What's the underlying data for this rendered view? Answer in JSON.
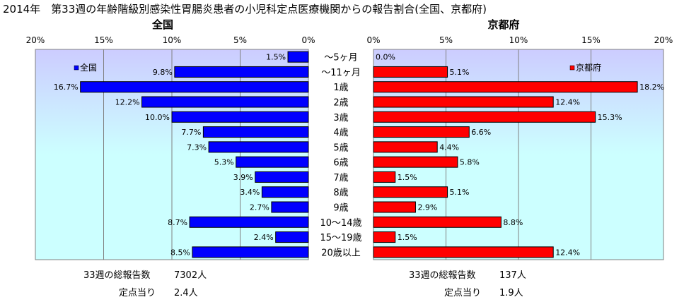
{
  "title": "2014年　第33週の年齢階級別感染性胃腸炎患者の小児科定点医療機関からの報告割合(全国、京都府)",
  "colors": {
    "national": "#0000ff",
    "kyoto": "#ff0000",
    "plot_bg_top": "#ccccff",
    "plot_bg_mid": "#ccffff"
  },
  "chart_data": [
    {
      "type": "bar",
      "orientation": "horizontal",
      "direction": "right-to-left",
      "title": "全国",
      "xlim": [
        0,
        20
      ],
      "xticks": [
        "0%",
        "5%",
        "10%",
        "15%",
        "20%"
      ],
      "categories": [
        "〜5ヶ月",
        "〜11ヶ月",
        "1歳",
        "2歳",
        "3歳",
        "4歳",
        "5歳",
        "6歳",
        "7歳",
        "8歳",
        "9歳",
        "10〜14歳",
        "15〜19歳",
        "20歳以上"
      ],
      "series": [
        {
          "name": "全国",
          "values": [
            1.5,
            9.8,
            16.7,
            12.2,
            10.0,
            7.7,
            7.3,
            5.3,
            3.9,
            3.4,
            2.7,
            8.7,
            2.4,
            8.5
          ]
        }
      ],
      "data_labels": [
        "1.5%",
        "9.8%",
        "16.7%",
        "12.2%",
        "10.0%",
        "7.7%",
        "7.3%",
        "5.3%",
        "3.9%",
        "3.4%",
        "2.7%",
        "8.7%",
        "2.4%",
        "8.5%"
      ],
      "legend": "top-left",
      "grid": true
    },
    {
      "type": "bar",
      "orientation": "horizontal",
      "direction": "left-to-right",
      "title": "京都府",
      "xlim": [
        0,
        20
      ],
      "xticks": [
        "0%",
        "5%",
        "10%",
        "15%",
        "20%"
      ],
      "categories": [
        "〜5ヶ月",
        "〜11ヶ月",
        "1歳",
        "2歳",
        "3歳",
        "4歳",
        "5歳",
        "6歳",
        "7歳",
        "8歳",
        "9歳",
        "10〜14歳",
        "15〜19歳",
        "20歳以上"
      ],
      "series": [
        {
          "name": "京都府",
          "values": [
            0.0,
            5.1,
            18.2,
            12.4,
            15.3,
            6.6,
            4.4,
            5.8,
            1.5,
            5.1,
            2.9,
            8.8,
            1.5,
            12.4
          ]
        }
      ],
      "data_labels": [
        "0.0%",
        "5.1%",
        "18.2%",
        "12.4%",
        "15.3%",
        "6.6%",
        "4.4%",
        "5.8%",
        "1.5%",
        "5.1%",
        "2.9%",
        "8.8%",
        "1.5%",
        "12.4%"
      ],
      "legend": "top-right",
      "grid": true
    }
  ],
  "footer": {
    "national": {
      "total_label": "33週の総報告数",
      "total_value": "7302人",
      "per_label": "定点当り",
      "per_value": "2.4人"
    },
    "kyoto": {
      "total_label": "33週の総報告数",
      "total_value": "137人",
      "per_label": "定点当り",
      "per_value": "1.9人"
    }
  }
}
